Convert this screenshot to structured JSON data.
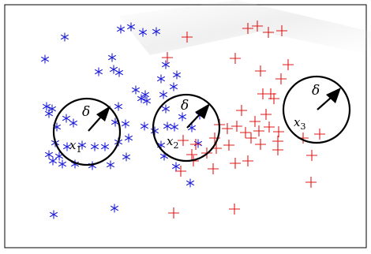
{
  "colors": {
    "class_a": "#1f1fd8",
    "class_b": "#e01818",
    "outline": "#000000"
  },
  "markers": {
    "class_a": "asterisk",
    "class_b": "plus"
  },
  "neighborhood": {
    "radius_label": "δ"
  },
  "probes": [
    {
      "var": "x",
      "sub": "1"
    },
    {
      "var": "x",
      "sub": "2"
    },
    {
      "var": "x",
      "sub": "3"
    }
  ]
}
